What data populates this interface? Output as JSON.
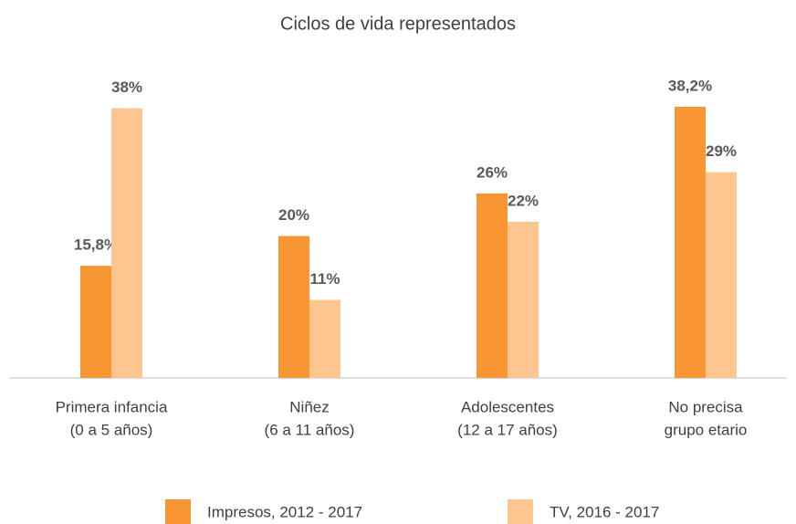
{
  "chart_data": {
    "type": "bar",
    "title": "Ciclos de vida representados",
    "categories": [
      [
        "Primera infancia",
        "(0 a 5 años)"
      ],
      [
        "Niñez",
        "(6 a 11 años)"
      ],
      [
        "Adolescentes",
        "(12 a 17 años)"
      ],
      [
        "No precisa",
        "grupo etario"
      ]
    ],
    "series": [
      {
        "name": "Impresos, 2012 - 2017",
        "color": "#f79633",
        "values": [
          15.8,
          20,
          26,
          38.2
        ],
        "value_labels": [
          "15,8%",
          "20%",
          "26%",
          "38,2%"
        ]
      },
      {
        "name": "TV, 2016 - 2017",
        "color": "#fdc58f",
        "values": [
          38,
          11,
          22,
          29
        ],
        "value_labels": [
          "38%",
          "11%",
          "22%",
          "29%"
        ]
      }
    ],
    "ylim": [
      0,
      40
    ],
    "legend": "bottom"
  }
}
